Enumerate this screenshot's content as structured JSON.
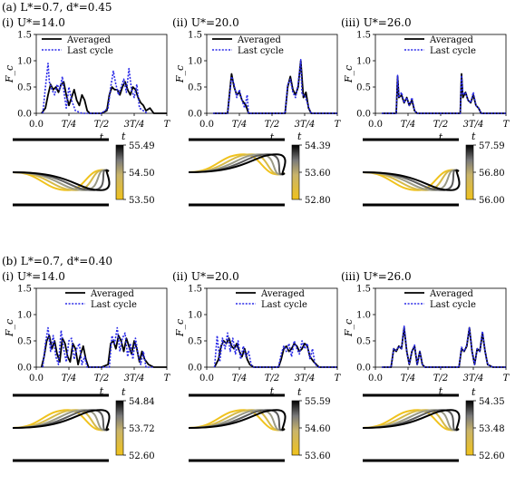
{
  "figure": {
    "panel_a_label": "(a) L*=0.7, d*=0.45",
    "panel_b_label": "(b) L*=0.7, d*=0.40"
  },
  "chart_data": [
    {
      "type": "line",
      "group": "a",
      "subtitle": "(i) U*=14.0",
      "xlabel": "t",
      "ylabel": "F_c",
      "ylim": [
        0,
        1.5
      ],
      "x_ticks": [
        "0.0",
        "T/4",
        "T/2",
        "3T/4",
        "T"
      ],
      "y_ticks": [
        "0.0",
        "0.5",
        "1.0",
        "1.5"
      ],
      "legend": [
        "Averaged",
        "Last cycle"
      ],
      "legend_position": "top-left",
      "series": [
        {
          "name": "Averaged",
          "x": [
            0.04,
            0.07,
            0.09,
            0.11,
            0.13,
            0.15,
            0.17,
            0.19,
            0.21,
            0.23,
            0.25,
            0.27,
            0.29,
            0.31,
            0.33,
            0.35,
            0.37,
            0.39,
            0.41,
            0.46,
            0.5,
            0.54,
            0.56,
            0.58,
            0.6,
            0.62,
            0.64,
            0.66,
            0.68,
            0.7,
            0.72,
            0.74,
            0.76,
            0.78,
            0.8,
            0.82,
            0.84,
            0.87,
            0.9,
            1.0
          ],
          "y": [
            0,
            0.1,
            0.35,
            0.55,
            0.45,
            0.5,
            0.4,
            0.55,
            0.6,
            0.35,
            0.15,
            0.3,
            0.45,
            0.25,
            0.15,
            0.35,
            0.25,
            0.05,
            0,
            0,
            0,
            0.05,
            0.35,
            0.5,
            0.45,
            0.45,
            0.35,
            0.5,
            0.6,
            0.45,
            0.35,
            0.5,
            0.45,
            0.3,
            0.2,
            0.15,
            0.05,
            0.1,
            0,
            0
          ]
        },
        {
          "name": "Last cycle",
          "x": [
            0.05,
            0.07,
            0.09,
            0.1,
            0.12,
            0.14,
            0.16,
            0.18,
            0.2,
            0.21,
            0.23,
            0.25,
            0.27,
            0.3,
            0.35,
            0.5,
            0.55,
            0.57,
            0.59,
            0.61,
            0.63,
            0.65,
            0.67,
            0.69,
            0.71,
            0.73,
            0.75,
            0.77,
            0.79,
            0.85
          ],
          "y": [
            0,
            0.5,
            0.95,
            0.6,
            0.45,
            0.35,
            0.55,
            0.45,
            0.7,
            0.45,
            0.1,
            0.5,
            0.25,
            0.05,
            0,
            0,
            0.1,
            0.5,
            0.8,
            0.55,
            0.35,
            0.5,
            0.65,
            0.4,
            0.85,
            0.45,
            0.3,
            0.55,
            0.1,
            0
          ]
        }
      ]
    },
    {
      "type": "line",
      "group": "a",
      "subtitle": "(ii) U*=20.0",
      "xlabel": "t",
      "ylabel": "F_c",
      "ylim": [
        0,
        1.5
      ],
      "x_ticks": [
        "0.0",
        "T/4",
        "T/2",
        "3T/4",
        "T"
      ],
      "y_ticks": [
        "0.0",
        "0.5",
        "1.0",
        "1.5"
      ],
      "legend": [
        "Averaged",
        "Last cycle"
      ],
      "legend_position": "top-left",
      "series": [
        {
          "name": "Averaged",
          "x": [
            0.05,
            0.16,
            0.18,
            0.19,
            0.21,
            0.23,
            0.25,
            0.27,
            0.3,
            0.32,
            0.35,
            0.45,
            0.6,
            0.62,
            0.64,
            0.66,
            0.68,
            0.7,
            0.72,
            0.74,
            0.76,
            0.78,
            0.8,
            1.0
          ],
          "y": [
            0,
            0,
            0.5,
            0.75,
            0.5,
            0.35,
            0.4,
            0.25,
            0.15,
            0,
            0,
            0,
            0,
            0.5,
            0.7,
            0.45,
            0.35,
            0.5,
            1.0,
            0.3,
            0.4,
            0.1,
            0,
            0
          ]
        },
        {
          "name": "Last cycle",
          "x": [
            0.05,
            0.16,
            0.18,
            0.19,
            0.21,
            0.23,
            0.25,
            0.27,
            0.29,
            0.31,
            0.32,
            0.35,
            0.45,
            0.6,
            0.62,
            0.64,
            0.66,
            0.68,
            0.7,
            0.72,
            0.73,
            0.75,
            0.77,
            0.79,
            0.8,
            1.0
          ],
          "y": [
            0,
            0,
            0.45,
            0.7,
            0.55,
            0.3,
            0.45,
            0.25,
            0.1,
            0.35,
            0,
            0,
            0,
            0,
            0.55,
            0.65,
            0.4,
            0.3,
            0.55,
            1.02,
            0.35,
            0.35,
            0.2,
            0.05,
            0,
            0
          ]
        }
      ]
    },
    {
      "type": "line",
      "group": "a",
      "subtitle": "(iii) U*=26.0",
      "xlabel": "t",
      "ylabel": "F_c",
      "ylim": [
        0,
        1.5
      ],
      "x_ticks": [
        "0.0",
        "T/4",
        "T/2",
        "3T/4",
        "T"
      ],
      "y_ticks": [
        "0.0",
        "0.5",
        "1.0",
        "1.5"
      ],
      "legend": [
        "Averaged",
        "Last cycle"
      ],
      "legend_position": "top-right",
      "series": [
        {
          "name": "Averaged",
          "x": [
            0.05,
            0.16,
            0.17,
            0.18,
            0.2,
            0.22,
            0.24,
            0.26,
            0.28,
            0.3,
            0.32,
            0.45,
            0.6,
            0.65,
            0.66,
            0.67,
            0.69,
            0.71,
            0.73,
            0.75,
            0.77,
            0.79,
            0.81,
            1.0
          ],
          "y": [
            0,
            0,
            0.7,
            0.3,
            0.35,
            0.2,
            0.3,
            0.15,
            0.25,
            0.05,
            0,
            0,
            0,
            0,
            0.75,
            0.3,
            0.4,
            0.25,
            0.2,
            0.35,
            0.15,
            0.1,
            0,
            0
          ]
        },
        {
          "name": "Last cycle",
          "x": [
            0.05,
            0.16,
            0.17,
            0.18,
            0.2,
            0.22,
            0.24,
            0.26,
            0.28,
            0.3,
            0.32,
            0.45,
            0.6,
            0.65,
            0.66,
            0.67,
            0.69,
            0.71,
            0.73,
            0.75,
            0.77,
            0.79,
            0.81,
            1.0
          ],
          "y": [
            0,
            0,
            0.72,
            0.3,
            0.4,
            0.2,
            0.3,
            0.15,
            0.3,
            0.05,
            0,
            0,
            0,
            0,
            0.72,
            0.35,
            0.4,
            0.25,
            0.2,
            0.4,
            0.15,
            0.1,
            0,
            0
          ]
        }
      ]
    },
    {
      "type": "line",
      "group": "b",
      "subtitle": "(i) U*=14.0",
      "xlabel": "t",
      "ylabel": "F_c",
      "ylim": [
        0,
        1.5
      ],
      "x_ticks": [
        "0.0",
        "T/4",
        "T/2",
        "3T/4",
        "T"
      ],
      "y_ticks": [
        "0.0",
        "0.5",
        "1.0",
        "1.5"
      ],
      "legend": [
        "Averaged",
        "Last cycle"
      ],
      "legend_position": "top-right",
      "series": [
        {
          "name": "Averaged",
          "x": [
            0.04,
            0.06,
            0.08,
            0.1,
            0.12,
            0.14,
            0.16,
            0.18,
            0.2,
            0.22,
            0.24,
            0.26,
            0.28,
            0.3,
            0.32,
            0.34,
            0.36,
            0.38,
            0.4,
            0.5,
            0.55,
            0.57,
            0.59,
            0.61,
            0.63,
            0.65,
            0.67,
            0.69,
            0.71,
            0.73,
            0.75,
            0.77,
            0.79,
            0.81,
            0.83,
            0.86,
            0.9,
            1.0
          ],
          "y": [
            0,
            0.2,
            0.5,
            0.6,
            0.35,
            0.5,
            0.25,
            0.1,
            0.55,
            0.45,
            0.2,
            0.1,
            0.45,
            0.35,
            0.05,
            0.25,
            0.4,
            0.15,
            0,
            0,
            0.05,
            0.45,
            0.5,
            0.35,
            0.6,
            0.5,
            0.3,
            0.55,
            0.4,
            0.25,
            0.5,
            0.35,
            0.1,
            0.3,
            0.15,
            0.05,
            0,
            0
          ]
        },
        {
          "name": "Last cycle",
          "x": [
            0.05,
            0.07,
            0.09,
            0.11,
            0.13,
            0.15,
            0.17,
            0.19,
            0.21,
            0.23,
            0.25,
            0.27,
            0.29,
            0.31,
            0.33,
            0.35,
            0.37,
            0.39,
            0.5,
            0.56,
            0.58,
            0.6,
            0.62,
            0.64,
            0.66,
            0.68,
            0.7,
            0.72,
            0.74,
            0.76,
            0.78,
            0.8,
            0.82,
            0.84,
            0.9
          ],
          "y": [
            0,
            0.45,
            0.75,
            0.3,
            0.6,
            0.2,
            0.05,
            0.7,
            0.35,
            0.1,
            0.5,
            0.55,
            0.15,
            0.35,
            0.45,
            0.05,
            0.2,
            0,
            0,
            0,
            0.6,
            0.45,
            0.75,
            0.3,
            0.55,
            0.65,
            0.2,
            0.45,
            0.15,
            0.55,
            0.25,
            0.05,
            0.3,
            0,
            0
          ]
        }
      ]
    },
    {
      "type": "line",
      "group": "b",
      "subtitle": "(ii) U*=20.0",
      "xlabel": "t",
      "ylabel": "F_c",
      "ylim": [
        0,
        1.5
      ],
      "x_ticks": [
        "0.0",
        "T/4",
        "T/2",
        "3T/4",
        "T"
      ],
      "y_ticks": [
        "0.0",
        "0.5",
        "1.0",
        "1.5"
      ],
      "legend": [
        "Averaged",
        "Last cycle"
      ],
      "legend_position": "top-right",
      "series": [
        {
          "name": "Averaged",
          "x": [
            0.06,
            0.09,
            0.11,
            0.13,
            0.15,
            0.17,
            0.19,
            0.21,
            0.23,
            0.25,
            0.27,
            0.29,
            0.31,
            0.33,
            0.36,
            0.45,
            0.55,
            0.57,
            0.59,
            0.61,
            0.63,
            0.65,
            0.67,
            0.69,
            0.71,
            0.73,
            0.75,
            0.77,
            0.79,
            0.82,
            0.86,
            1.0
          ],
          "y": [
            0,
            0.15,
            0.4,
            0.5,
            0.45,
            0.55,
            0.4,
            0.35,
            0.45,
            0.3,
            0.2,
            0.35,
            0.15,
            0.05,
            0,
            0,
            0,
            0.15,
            0.35,
            0.4,
            0.3,
            0.35,
            0.45,
            0.4,
            0.3,
            0.35,
            0.45,
            0.4,
            0.2,
            0.1,
            0,
            0
          ]
        },
        {
          "name": "Last cycle",
          "x": [
            0.06,
            0.08,
            0.1,
            0.12,
            0.14,
            0.16,
            0.18,
            0.2,
            0.22,
            0.24,
            0.26,
            0.28,
            0.3,
            0.32,
            0.34,
            0.36,
            0.45,
            0.55,
            0.57,
            0.59,
            0.61,
            0.63,
            0.65,
            0.67,
            0.69,
            0.71,
            0.73,
            0.75,
            0.77,
            0.79,
            0.81,
            0.83,
            0.86,
            1.0
          ],
          "y": [
            0,
            0.6,
            0.1,
            0.55,
            0.35,
            0.65,
            0.3,
            0.55,
            0.25,
            0.5,
            0.15,
            0.4,
            0.2,
            0.3,
            0.05,
            0,
            0,
            0,
            0.25,
            0.4,
            0.3,
            0.45,
            0.2,
            0.5,
            0.35,
            0.25,
            0.5,
            0.35,
            0.45,
            0.15,
            0.35,
            0.05,
            0,
            0
          ]
        }
      ]
    },
    {
      "type": "line",
      "group": "b",
      "subtitle": "(iii) U*=26.0",
      "xlabel": "t",
      "ylabel": "F_c",
      "ylim": [
        0,
        1.5
      ],
      "x_ticks": [
        "0.0",
        "T/4",
        "T/2",
        "3T/4",
        "T"
      ],
      "y_ticks": [
        "0.0",
        "0.5",
        "1.0",
        "1.5"
      ],
      "legend": [
        "Averaged",
        "Last cycle"
      ],
      "legend_position": "top-right",
      "series": [
        {
          "name": "Averaged",
          "x": [
            0.05,
            0.12,
            0.14,
            0.16,
            0.18,
            0.2,
            0.22,
            0.24,
            0.26,
            0.28,
            0.3,
            0.32,
            0.34,
            0.36,
            0.38,
            0.45,
            0.6,
            0.64,
            0.66,
            0.68,
            0.7,
            0.72,
            0.74,
            0.76,
            0.78,
            0.8,
            0.82,
            0.84,
            0.86,
            0.9,
            1.0
          ],
          "y": [
            0,
            0,
            0.35,
            0.3,
            0.4,
            0.35,
            0.75,
            0.3,
            0.05,
            0.3,
            0.4,
            0.05,
            0.3,
            0.05,
            0,
            0,
            0,
            0,
            0.35,
            0.3,
            0.4,
            0.75,
            0.3,
            0.05,
            0.35,
            0.3,
            0.65,
            0.3,
            0.05,
            0,
            0
          ]
        },
        {
          "name": "Last cycle",
          "x": [
            0.05,
            0.12,
            0.14,
            0.16,
            0.18,
            0.2,
            0.22,
            0.24,
            0.26,
            0.28,
            0.3,
            0.32,
            0.34,
            0.36,
            0.38,
            0.45,
            0.6,
            0.64,
            0.66,
            0.68,
            0.7,
            0.72,
            0.74,
            0.76,
            0.78,
            0.8,
            0.82,
            0.84,
            0.86,
            0.9,
            1.0
          ],
          "y": [
            0,
            0,
            0.35,
            0.32,
            0.4,
            0.35,
            0.78,
            0.3,
            0.05,
            0.3,
            0.42,
            0.05,
            0.3,
            0.05,
            0,
            0,
            0,
            0,
            0.38,
            0.3,
            0.42,
            0.75,
            0.3,
            0.05,
            0.35,
            0.3,
            0.68,
            0.3,
            0.05,
            0,
            0
          ]
        }
      ]
    }
  ],
  "wake_colorbars": [
    {
      "label": "t",
      "ticks": [
        "55.49",
        "54.50",
        "53.50"
      ]
    },
    {
      "label": "t",
      "ticks": [
        "54.39",
        "53.60",
        "52.80"
      ]
    },
    {
      "label": "t",
      "ticks": [
        "57.59",
        "56.80",
        "56.00"
      ]
    },
    {
      "label": "t",
      "ticks": [
        "54.84",
        "53.72",
        "52.60"
      ]
    },
    {
      "label": "t",
      "ticks": [
        "55.59",
        "54.60",
        "53.60"
      ]
    },
    {
      "label": "t",
      "ticks": [
        "54.35",
        "53.48",
        "52.60"
      ]
    }
  ],
  "colors": {
    "averaged": "#000000",
    "last_cycle": "#2a2ae8",
    "colormap": [
      "#000000",
      "#7a7a7a",
      "#c9b46a",
      "#f0c21c"
    ]
  }
}
